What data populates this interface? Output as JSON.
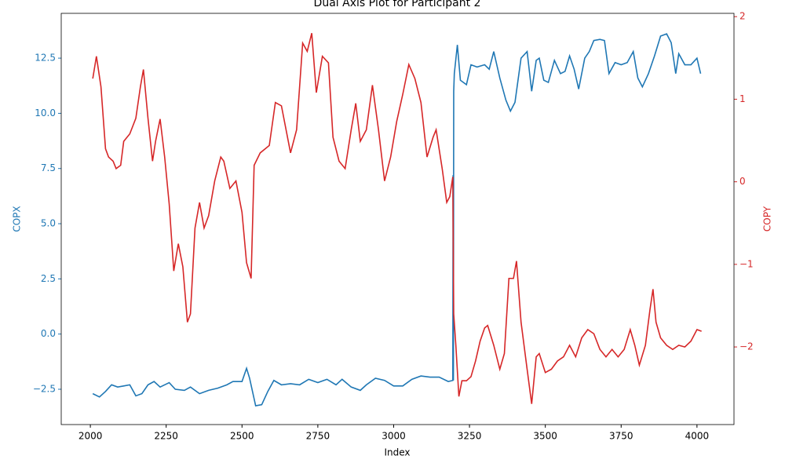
{
  "chart_data": {
    "type": "line",
    "title": "Dual Axis Plot for Participant 2",
    "xlabel": "Index",
    "ylabel": "COPX",
    "y2label": "COPY",
    "xlim": [
      1904,
      4122
    ],
    "xticks": [
      2000,
      2250,
      2500,
      2750,
      3000,
      3250,
      3500,
      3750,
      4000
    ],
    "ylim": [
      -4.1,
      14.53
    ],
    "yticks": [
      {
        "value": -2.5,
        "label": "−2.5"
      },
      {
        "value": 0,
        "label": "0.0"
      },
      2.5,
      {
        "value": 5,
        "label": "5.0"
      },
      7.5,
      {
        "value": 10,
        "label": "10.0"
      },
      12.5
    ],
    "y2lim": [
      -2.94,
      2.04
    ],
    "y2ticks": [
      {
        "value": -2,
        "label": "−2"
      },
      {
        "value": -1,
        "label": "−1"
      },
      0,
      1,
      2
    ],
    "series": [
      {
        "color": "#1f77b4",
        "axis": "y",
        "x": [
          2008,
          2030,
          2050,
          2070,
          2090,
          2110,
          2130,
          2150,
          2170,
          2190,
          2210,
          2230,
          2260,
          2280,
          2310,
          2330,
          2360,
          2390,
          2420,
          2450,
          2470,
          2500,
          2515,
          2525,
          2545,
          2565,
          2585,
          2605,
          2630,
          2660,
          2690,
          2720,
          2750,
          2780,
          2810,
          2830,
          2860,
          2890,
          2910,
          2940,
          2970,
          3000,
          3030,
          3060,
          3090,
          3120,
          3150,
          3180,
          3195,
          3196,
          3197,
          3198,
          3200,
          3210,
          3220,
          3240,
          3255,
          3275,
          3300,
          3315,
          3330,
          3350,
          3370,
          3385,
          3400,
          3420,
          3440,
          3455,
          3470,
          3480,
          3495,
          3510,
          3530,
          3550,
          3565,
          3580,
          3595,
          3610,
          3630,
          3645,
          3660,
          3680,
          3695,
          3710,
          3730,
          3750,
          3770,
          3790,
          3805,
          3820,
          3840,
          3860,
          3880,
          3900,
          3915,
          3930,
          3940,
          3960,
          3980,
          4000,
          4012
        ],
        "values": [
          -2.7,
          -2.85,
          -2.6,
          -2.3,
          -2.4,
          -2.35,
          -2.3,
          -2.8,
          -2.7,
          -2.3,
          -2.15,
          -2.4,
          -2.2,
          -2.5,
          -2.55,
          -2.4,
          -2.7,
          -2.55,
          -2.45,
          -2.3,
          -2.15,
          -2.15,
          -1.55,
          -2.0,
          -3.25,
          -3.2,
          -2.6,
          -2.1,
          -2.3,
          -2.25,
          -2.3,
          -2.05,
          -2.2,
          -2.05,
          -2.3,
          -2.05,
          -2.4,
          -2.55,
          -2.3,
          -2.0,
          -2.1,
          -2.35,
          -2.35,
          -2.05,
          -1.9,
          -1.95,
          -1.95,
          -2.15,
          -2.1,
          7.2,
          -2.1,
          11,
          11.8,
          13.1,
          11.5,
          11.3,
          12.2,
          12.1,
          12.2,
          12.0,
          12.8,
          11.6,
          10.6,
          10.1,
          10.5,
          12.5,
          12.8,
          11.0,
          12.4,
          12.5,
          11.5,
          11.4,
          12.4,
          11.8,
          11.9,
          12.6,
          12.0,
          11.1,
          12.5,
          12.8,
          13.3,
          13.35,
          13.3,
          11.8,
          12.3,
          12.2,
          12.3,
          12.8,
          11.6,
          11.2,
          11.8,
          12.6,
          13.5,
          13.6,
          13.2,
          11.8,
          12.7,
          12.2,
          12.2,
          12.5,
          11.8
        ]
      },
      {
        "color": "#d62728",
        "axis": "y2",
        "x": [
          2008,
          2020,
          2035,
          2050,
          2060,
          2075,
          2085,
          2100,
          2110,
          2130,
          2150,
          2165,
          2175,
          2190,
          2205,
          2215,
          2230,
          2245,
          2260,
          2275,
          2290,
          2305,
          2320,
          2330,
          2345,
          2360,
          2375,
          2390,
          2410,
          2430,
          2440,
          2460,
          2480,
          2500,
          2515,
          2530,
          2540,
          2560,
          2590,
          2610,
          2630,
          2660,
          2680,
          2700,
          2715,
          2730,
          2745,
          2765,
          2785,
          2800,
          2820,
          2840,
          2860,
          2875,
          2890,
          2910,
          2930,
          2950,
          2970,
          2990,
          3010,
          3030,
          3050,
          3070,
          3090,
          3110,
          3130,
          3140,
          3160,
          3175,
          3185,
          3195,
          3198,
          3205,
          3215,
          3225,
          3240,
          3255,
          3270,
          3285,
          3300,
          3310,
          3330,
          3350,
          3365,
          3380,
          3395,
          3405,
          3420,
          3440,
          3455,
          3470,
          3480,
          3500,
          3520,
          3540,
          3560,
          3580,
          3600,
          3620,
          3640,
          3660,
          3680,
          3700,
          3720,
          3740,
          3760,
          3780,
          3795,
          3810,
          3830,
          3845,
          3855,
          3865,
          3880,
          3900,
          3920,
          3940,
          3960,
          3980,
          4000,
          4015
        ],
        "values": [
          1.25,
          1.52,
          1.15,
          0.4,
          0.3,
          0.25,
          0.16,
          0.2,
          0.49,
          0.58,
          0.77,
          1.15,
          1.36,
          0.77,
          0.25,
          0.49,
          0.76,
          0.3,
          -0.27,
          -1.08,
          -0.75,
          -1.03,
          -1.7,
          -1.6,
          -0.56,
          -0.25,
          -0.56,
          -0.41,
          0.01,
          0.3,
          0.25,
          -0.08,
          0.01,
          -0.37,
          -0.98,
          -1.17,
          0.2,
          0.35,
          0.44,
          0.96,
          0.92,
          0.35,
          0.63,
          1.68,
          1.58,
          1.8,
          1.08,
          1.52,
          1.44,
          0.54,
          0.25,
          0.16,
          0.63,
          0.95,
          0.49,
          0.63,
          1.17,
          0.63,
          0.01,
          0.3,
          0.73,
          1.06,
          1.42,
          1.25,
          0.96,
          0.3,
          0.54,
          0.63,
          0.16,
          -0.25,
          -0.18,
          0.06,
          -1.6,
          -1.98,
          -2.6,
          -2.41,
          -2.41,
          -2.36,
          -2.17,
          -1.93,
          -1.77,
          -1.74,
          -1.98,
          -2.27,
          -2.08,
          -1.17,
          -1.17,
          -0.96,
          -1.7,
          -2.27,
          -2.69,
          -2.12,
          -2.08,
          -2.31,
          -2.27,
          -2.17,
          -2.12,
          -1.98,
          -2.12,
          -1.89,
          -1.79,
          -1.84,
          -2.03,
          -2.12,
          -2.03,
          -2.12,
          -2.03,
          -1.79,
          -1.98,
          -2.22,
          -1.98,
          -1.55,
          -1.3,
          -1.7,
          -1.89,
          -1.98,
          -2.03,
          -1.98,
          -2.0,
          -1.93,
          -1.79,
          -1.81
        ]
      }
    ]
  }
}
